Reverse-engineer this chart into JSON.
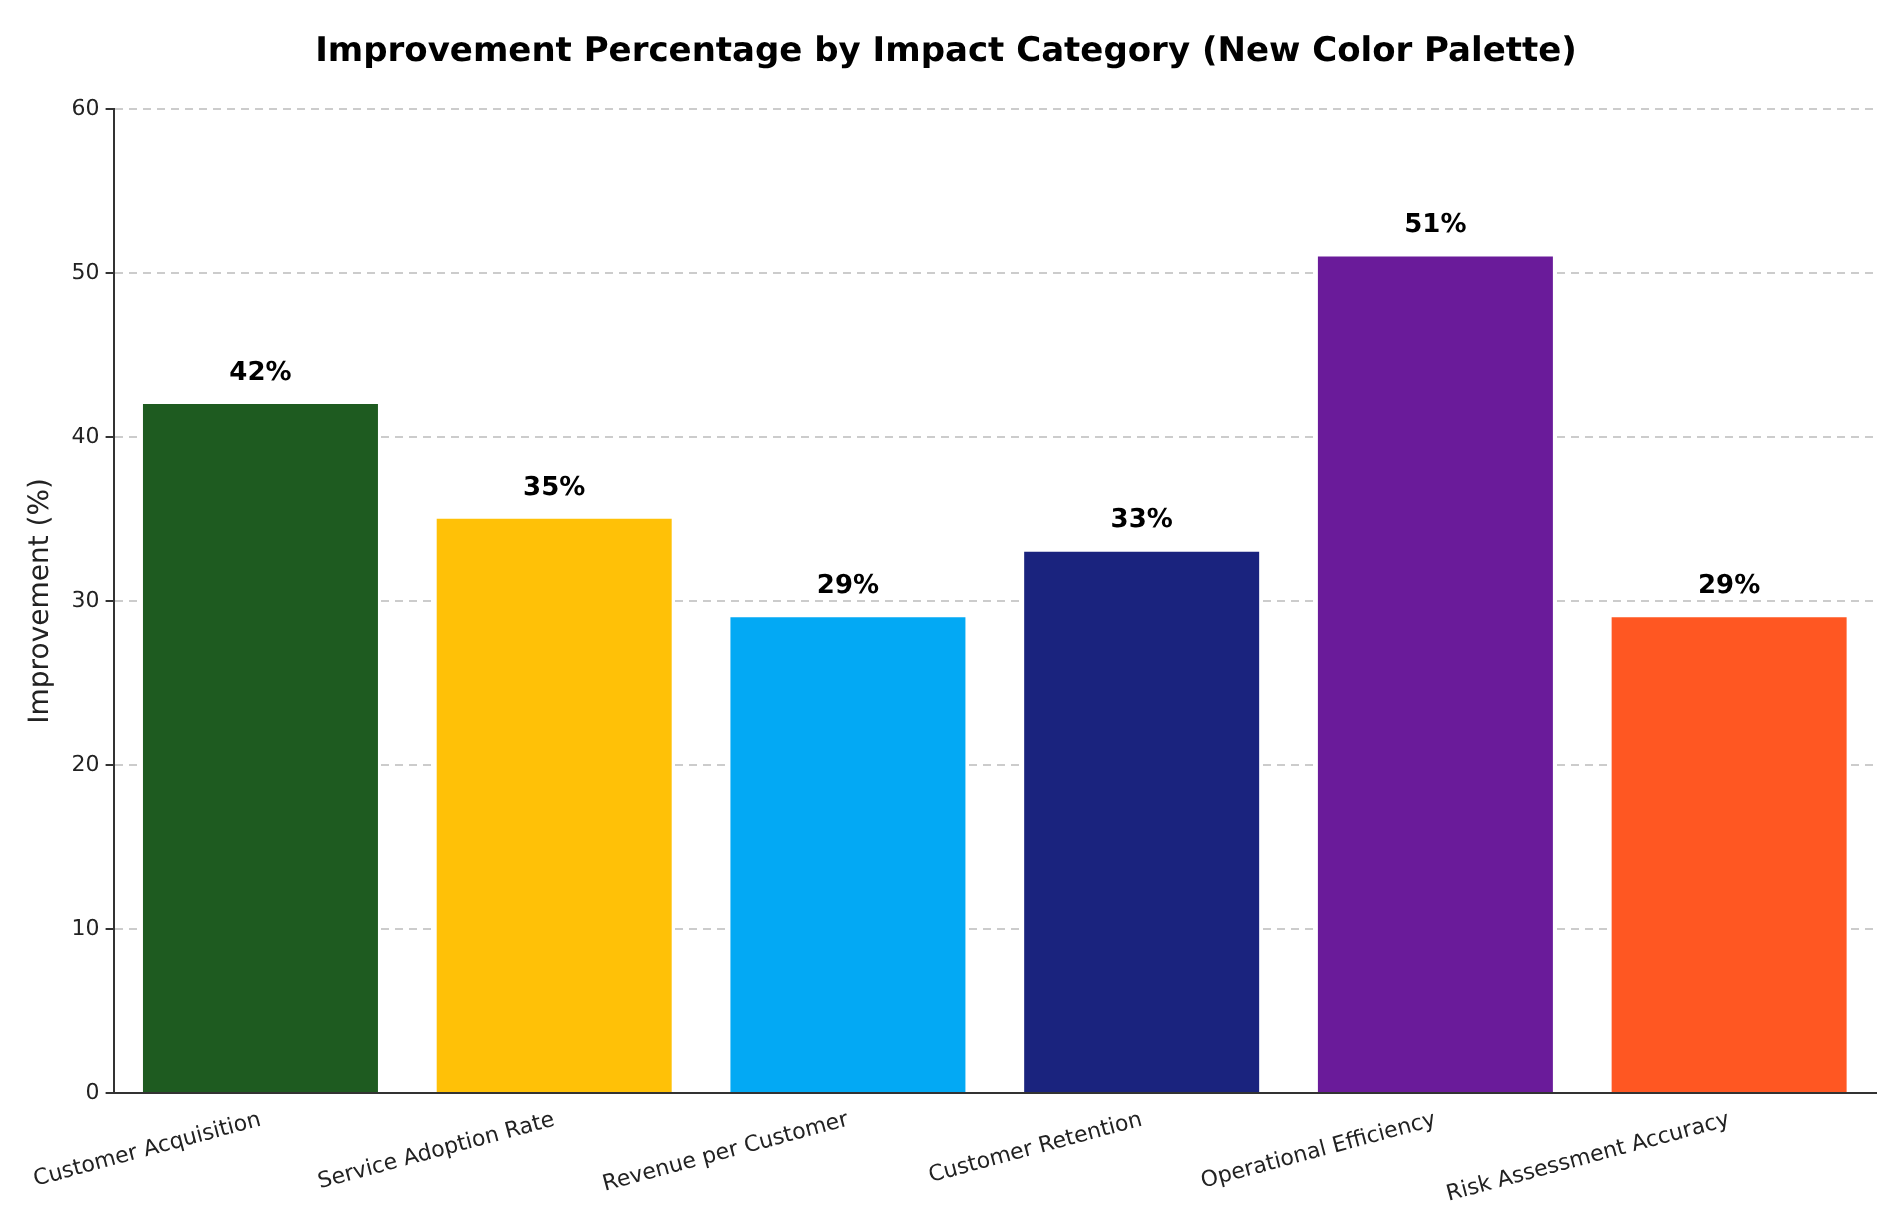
{
  "chart_data": {
    "type": "bar",
    "title": "Improvement Percentage by Impact Category (New Color Palette)",
    "ylabel": "Improvement (%)",
    "categories": [
      "Customer Acquisition",
      "Service Adoption Rate",
      "Revenue per Customer",
      "Customer Retention",
      "Operational Efficiency",
      "Risk Assessment Accuracy"
    ],
    "values": [
      42,
      35,
      29,
      33,
      51,
      29
    ],
    "colors": [
      "#1e5b20",
      "#ffc107",
      "#03a9f4",
      "#1a237e",
      "#6a1b9a",
      "#ff5722"
    ],
    "value_labels": [
      "42%",
      "35%",
      "29%",
      "33%",
      "51%",
      "29%"
    ],
    "ylim": [
      0,
      60
    ],
    "yticks": [
      0,
      10,
      20,
      30,
      40,
      50,
      60
    ],
    "grid": "y",
    "legend": false
  }
}
